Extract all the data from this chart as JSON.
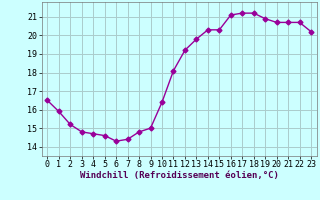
{
  "x": [
    0,
    1,
    2,
    3,
    4,
    5,
    6,
    7,
    8,
    9,
    10,
    11,
    12,
    13,
    14,
    15,
    16,
    17,
    18,
    19,
    20,
    21,
    22,
    23
  ],
  "y": [
    16.5,
    15.9,
    15.2,
    14.8,
    14.7,
    14.6,
    14.3,
    14.4,
    14.8,
    15.0,
    16.4,
    18.1,
    19.2,
    19.8,
    20.3,
    20.3,
    21.1,
    21.2,
    21.2,
    20.9,
    20.7,
    20.7,
    20.7,
    20.2
  ],
  "line_color": "#990099",
  "marker": "D",
  "markersize": 2.5,
  "linewidth": 1.0,
  "bg_color": "#ccffff",
  "grid_color": "#aacccc",
  "xlabel": "Windchill (Refroidissement éolien,°C)",
  "xlabel_fontsize": 6.5,
  "tick_fontsize": 6,
  "ylim": [
    13.5,
    21.8
  ],
  "yticks": [
    14,
    15,
    16,
    17,
    18,
    19,
    20,
    21
  ],
  "xlim": [
    -0.5,
    23.5
  ],
  "xticks": [
    0,
    1,
    2,
    3,
    4,
    5,
    6,
    7,
    8,
    9,
    10,
    11,
    12,
    13,
    14,
    15,
    16,
    17,
    18,
    19,
    20,
    21,
    22,
    23
  ]
}
